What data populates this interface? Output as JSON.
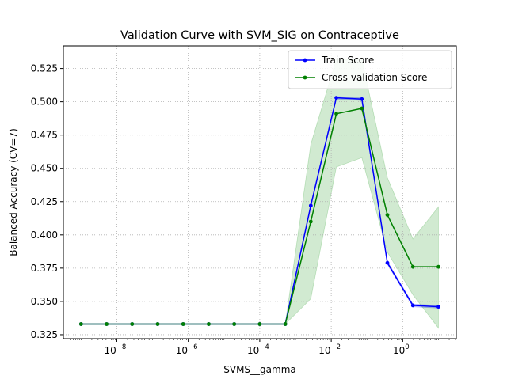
{
  "chart_data": {
    "type": "line",
    "title": "Validation Curve with SVM_SIG on Contraceptive",
    "xlabel": "SVMS__gamma",
    "ylabel": "Balanced Accuracy (CV=7)",
    "x_scale": "log",
    "xlim": [
      3.2e-10,
      31.6
    ],
    "ylim": [
      0.322,
      0.542
    ],
    "x_ticks": [
      {
        "value": 1e-08,
        "base": "10",
        "exp": "−8"
      },
      {
        "value": 1e-06,
        "base": "10",
        "exp": "−6"
      },
      {
        "value": 0.0001,
        "base": "10",
        "exp": "−4"
      },
      {
        "value": 0.01,
        "base": "10",
        "exp": "−2"
      },
      {
        "value": 1,
        "base": "10",
        "exp": "0"
      }
    ],
    "y_ticks": [
      "0.325",
      "0.350",
      "0.375",
      "0.400",
      "0.425",
      "0.450",
      "0.475",
      "0.500",
      "0.525"
    ],
    "grid": true,
    "legend_position": "top-right",
    "x": [
      1e-09,
      5.18e-09,
      2.68e-08,
      1.39e-07,
      7.2e-07,
      3.73e-06,
      1.93e-05,
      0.0001,
      0.000518,
      0.00268,
      0.0139,
      0.072,
      0.373,
      1.93,
      10
    ],
    "series": [
      {
        "name": "Train Score",
        "color": "#0000ff",
        "values": [
          0.333,
          0.333,
          0.333,
          0.333,
          0.333,
          0.333,
          0.333,
          0.333,
          0.333,
          0.422,
          0.503,
          0.502,
          0.379,
          0.347,
          0.346
        ],
        "band_lower": [
          0.333,
          0.333,
          0.333,
          0.333,
          0.333,
          0.333,
          0.333,
          0.333,
          0.333,
          0.421,
          0.502,
          0.501,
          0.378,
          0.346,
          0.345
        ],
        "band_upper": [
          0.333,
          0.333,
          0.333,
          0.333,
          0.333,
          0.333,
          0.333,
          0.333,
          0.333,
          0.423,
          0.504,
          0.503,
          0.38,
          0.348,
          0.347
        ]
      },
      {
        "name": "Cross-validation Score",
        "color": "#008000",
        "band_color": "#2ca02c",
        "values": [
          0.333,
          0.333,
          0.333,
          0.333,
          0.333,
          0.333,
          0.333,
          0.333,
          0.333,
          0.41,
          0.491,
          0.495,
          0.415,
          0.376,
          0.376
        ],
        "band_lower": [
          0.333,
          0.333,
          0.333,
          0.333,
          0.333,
          0.333,
          0.333,
          0.333,
          0.333,
          0.352,
          0.451,
          0.458,
          0.387,
          0.355,
          0.33
        ],
        "band_upper": [
          0.333,
          0.333,
          0.333,
          0.333,
          0.333,
          0.333,
          0.333,
          0.333,
          0.333,
          0.468,
          0.532,
          0.532,
          0.443,
          0.397,
          0.421
        ]
      }
    ]
  }
}
